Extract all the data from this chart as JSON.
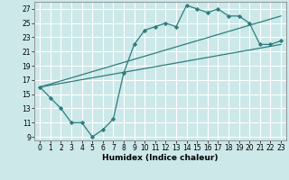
{
  "xlabel": "Humidex (Indice chaleur)",
  "bg_color": "#cce8e8",
  "grid_color": "#ffffff",
  "line_color": "#2d7d7d",
  "xlim": [
    -0.5,
    23.5
  ],
  "ylim": [
    8.5,
    28
  ],
  "xticks": [
    0,
    1,
    2,
    3,
    4,
    5,
    6,
    7,
    8,
    9,
    10,
    11,
    12,
    13,
    14,
    15,
    16,
    17,
    18,
    19,
    20,
    21,
    22,
    23
  ],
  "yticks": [
    9,
    11,
    13,
    15,
    17,
    19,
    21,
    23,
    25,
    27
  ],
  "curve": {
    "x": [
      0,
      1,
      2,
      3,
      4,
      5,
      6,
      7,
      8,
      9,
      10,
      11,
      12,
      13,
      14,
      15,
      16,
      17,
      18,
      19,
      20,
      21,
      22,
      23
    ],
    "y": [
      16,
      14.5,
      13,
      11,
      11,
      9,
      10,
      11.5,
      18,
      22,
      24,
      24.5,
      25,
      24.5,
      27.5,
      27,
      26.5,
      27,
      26,
      26,
      25,
      22,
      22,
      22.5
    ]
  },
  "line_lower": {
    "x": [
      0,
      23
    ],
    "y": [
      16,
      22
    ]
  },
  "line_upper": {
    "x": [
      0,
      23
    ],
    "y": [
      16,
      26
    ]
  }
}
